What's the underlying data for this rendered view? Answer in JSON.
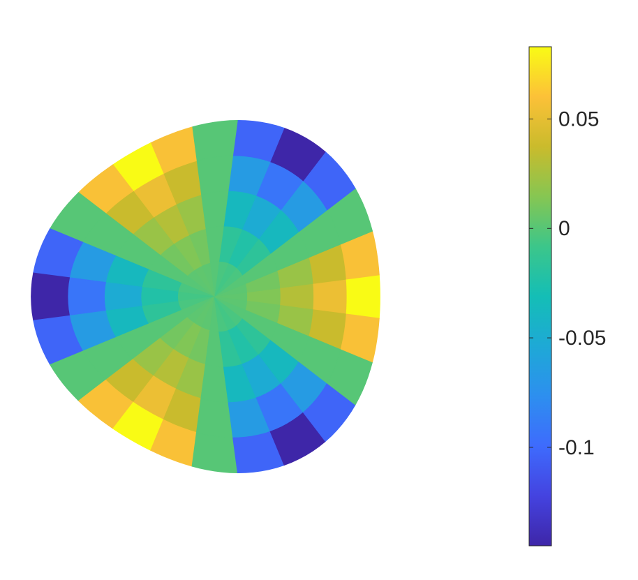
{
  "chart_data": {
    "type": "polar-surface",
    "colormap": "parula",
    "theta": [
      0,
      15,
      30,
      45,
      60,
      75,
      90,
      105,
      120,
      135,
      150,
      165,
      180,
      195,
      210,
      225,
      240,
      255,
      270,
      285,
      300,
      315,
      330,
      345
    ],
    "r": [
      0.2,
      0.4,
      0.6,
      0.8,
      1
    ],
    "values": [
      [
        0.003,
        0.002,
        0,
        -0.004,
        -0.006,
        -0.004,
        0,
        0.002,
        0.003,
        0.002,
        0,
        -0.004,
        -0.006,
        -0.004,
        0,
        0.002,
        0.003,
        0.002,
        0,
        -0.004,
        -0.006,
        -0.004,
        0,
        0.002
      ],
      [
        0.013,
        0.009,
        0,
        -0.016,
        -0.023,
        -0.016,
        0,
        0.009,
        0.013,
        0.009,
        0,
        -0.016,
        -0.023,
        -0.016,
        0,
        0.009,
        0.013,
        0.009,
        0,
        -0.016,
        -0.023,
        -0.016,
        0,
        0.009
      ],
      [
        0.03,
        0.021,
        0,
        -0.037,
        -0.052,
        -0.037,
        0,
        0.021,
        0.03,
        0.021,
        0,
        -0.037,
        -0.052,
        -0.037,
        0,
        0.021,
        0.03,
        0.021,
        0,
        -0.037,
        -0.052,
        -0.037,
        0,
        0.021
      ],
      [
        0.053,
        0.037,
        0,
        -0.066,
        -0.093,
        -0.066,
        0,
        0.037,
        0.053,
        0.037,
        0,
        -0.066,
        -0.093,
        -0.066,
        0,
        0.037,
        0.053,
        0.037,
        0,
        -0.066,
        -0.093,
        -0.066,
        0,
        0.037
      ],
      [
        0.083,
        0.059,
        0,
        -0.103,
        -0.145,
        -0.103,
        0,
        0.059,
        0.083,
        0.059,
        0,
        -0.103,
        -0.145,
        -0.103,
        0,
        0.059,
        0.083,
        0.059,
        0,
        -0.103,
        -0.145,
        -0.103,
        0,
        0.059
      ]
    ],
    "clim": [
      -0.145,
      0.083
    ],
    "cticks": [
      -0.1,
      -0.05,
      0,
      0.05
    ]
  }
}
